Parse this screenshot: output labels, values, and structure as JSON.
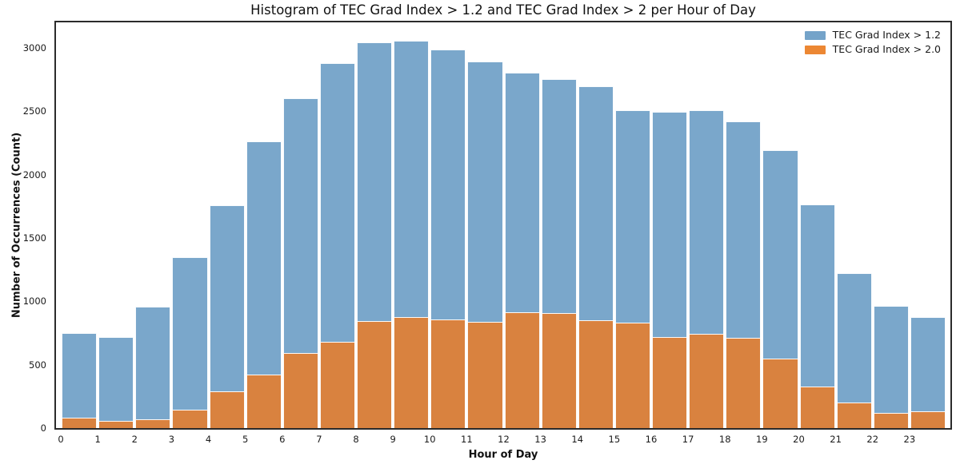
{
  "figure": {
    "title": "Histogram of TEC Grad Index > 1.2 and TEC Grad Index > 2 per Hour of Day",
    "xlabel": "Hour of Day",
    "ylabel": "Number of Occurrences (Count)"
  },
  "legend": {
    "items": [
      {
        "label": "TEC Grad Index > 1.2",
        "color": "#74a3c9"
      },
      {
        "label": "TEC Grad Index > 2.0",
        "color": "#ec8733"
      }
    ]
  },
  "chart_data": {
    "type": "bar",
    "mode": "overlay",
    "title": "Histogram of TEC Grad Index > 1.2 and TEC Grad Index > 2 per Hour of Day",
    "xlabel": "Hour of Day",
    "ylabel": "Number of Occurrences (Count)",
    "categories": [
      0,
      1,
      2,
      3,
      4,
      5,
      6,
      7,
      8,
      9,
      10,
      11,
      12,
      13,
      14,
      15,
      16,
      17,
      18,
      19,
      20,
      21,
      22,
      23
    ],
    "series": [
      {
        "name": "TEC Grad Index > 1.2",
        "color": "#7aa7cb",
        "values": [
          750,
          720,
          960,
          1350,
          1760,
          2260,
          2600,
          2880,
          3040,
          3055,
          2985,
          2890,
          2805,
          2755,
          2695,
          2510,
          2495,
          2510,
          2420,
          2195,
          1765,
          1220,
          965,
          875
        ]
      },
      {
        "name": "TEC Grad Index > 2.0",
        "color": "#d9823f",
        "values": [
          80,
          55,
          70,
          145,
          290,
          425,
          595,
          680,
          845,
          875,
          855,
          840,
          915,
          905,
          850,
          830,
          720,
          745,
          715,
          545,
          330,
          200,
          120,
          130
        ]
      }
    ],
    "ylim": [
      0,
      3200
    ],
    "yticks": [
      0,
      500,
      1000,
      1500,
      2000,
      2500,
      3000
    ],
    "xticks": [
      0,
      1,
      2,
      3,
      4,
      5,
      6,
      7,
      8,
      9,
      10,
      11,
      12,
      13,
      14,
      15,
      16,
      17,
      18,
      19,
      20,
      21,
      22,
      23
    ],
    "legend_position": "upper right",
    "grid": false,
    "colors": {
      "spine": "#2b2b2b",
      "background": "#ffffff",
      "text": "#1a1a1a"
    }
  }
}
